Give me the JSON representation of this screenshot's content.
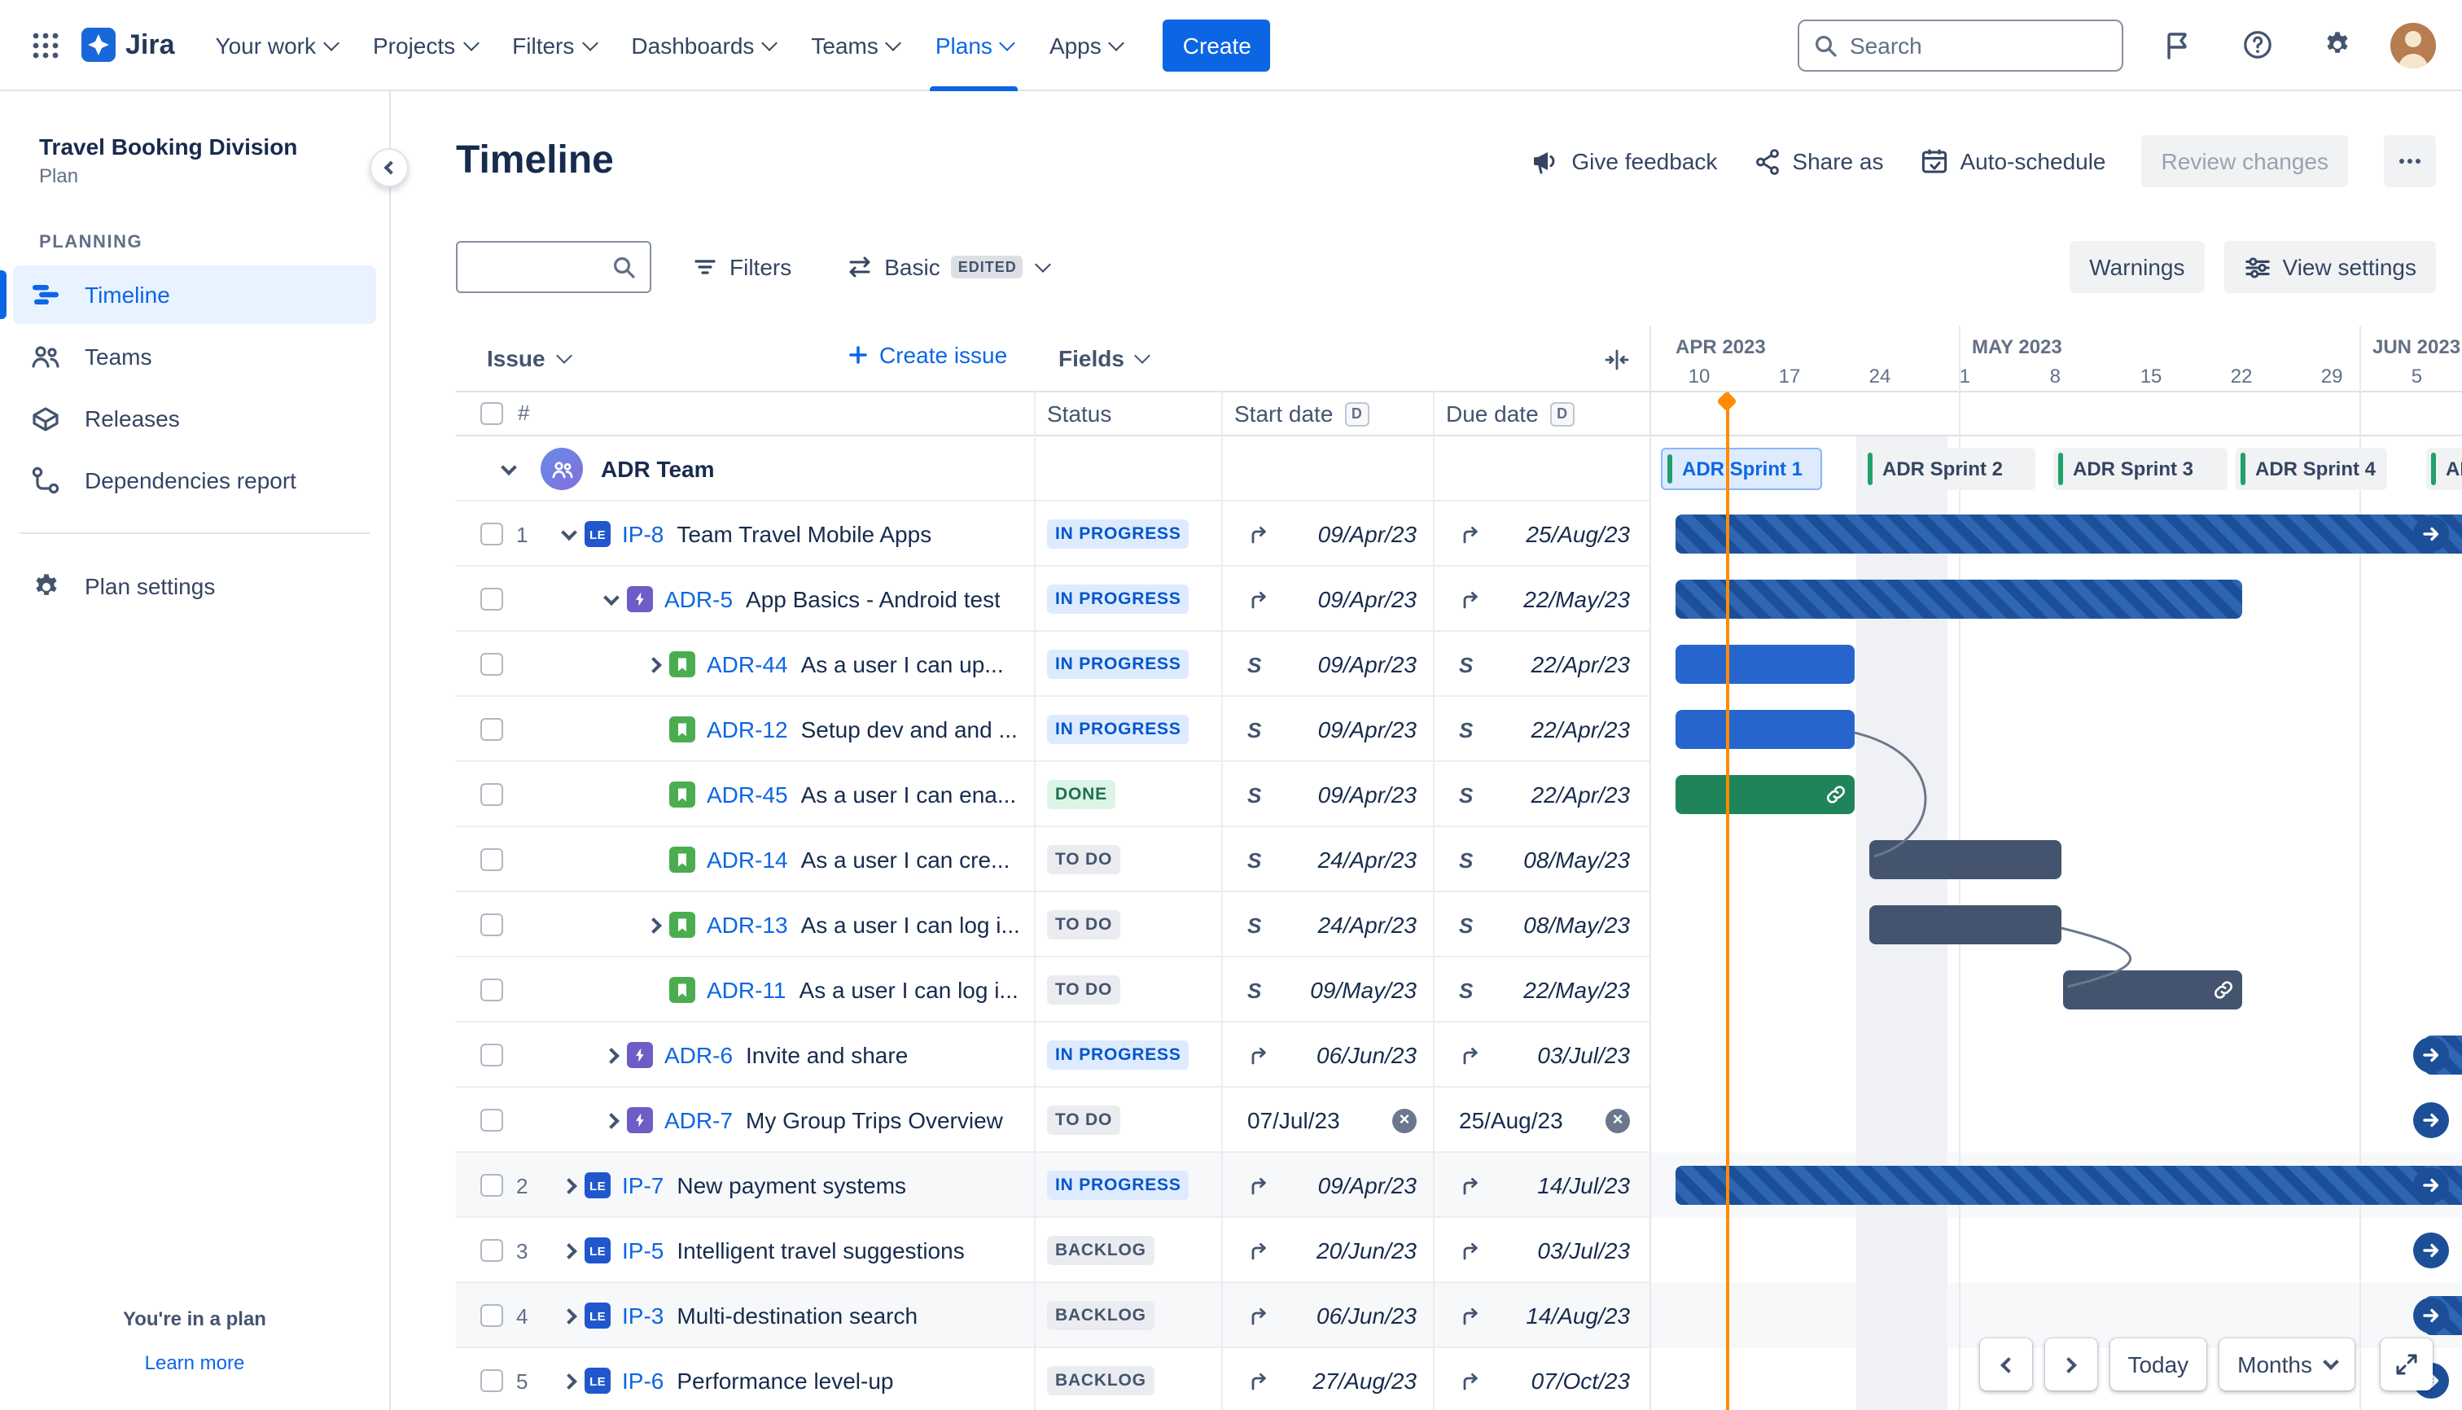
{
  "colors": {
    "accent": "#0C66E4",
    "today_line": "#FF8B00",
    "bar_striped_dark": "#1D4F99",
    "bar_striped_light": "#2E66B4",
    "bar_blue": "#2665CC",
    "bar_green": "#1F845A",
    "bar_gray": "#44546F",
    "status_inprogress_bg": "#DEEBFF",
    "status_inprogress_text": "#0055CC",
    "status_done_bg": "#DCF5E7",
    "status_done_text": "#216E4E",
    "status_todo_bg": "#EBECF0",
    "status_todo_text": "#44546F"
  },
  "nav": {
    "logo_text": "Jira",
    "items": [
      {
        "label": "Your work"
      },
      {
        "label": "Projects"
      },
      {
        "label": "Filters"
      },
      {
        "label": "Dashboards"
      },
      {
        "label": "Teams"
      },
      {
        "label": "Plans",
        "active": true
      },
      {
        "label": "Apps"
      }
    ],
    "create_label": "Create",
    "search_placeholder": "Search"
  },
  "sidebar": {
    "plan_name": "Travel Booking Division",
    "plan_type": "Plan",
    "section_label": "PLANNING",
    "items": [
      {
        "label": "Timeline",
        "icon": "timeline",
        "active": true
      },
      {
        "label": "Teams",
        "icon": "teams"
      },
      {
        "label": "Releases",
        "icon": "releases"
      },
      {
        "label": "Dependencies report",
        "icon": "dependencies"
      }
    ],
    "settings_label": "Plan settings",
    "footer_text": "You're in a plan",
    "footer_link_label": "Learn more"
  },
  "header": {
    "title": "Timeline",
    "give_feedback_label": "Give feedback",
    "share_label": "Share as",
    "autoschedule_label": "Auto-schedule",
    "review_changes_label": "Review changes"
  },
  "toolbar": {
    "search_value": "",
    "filters_label": "Filters",
    "view_label": "Basic",
    "view_badge": "EDITED",
    "warnings_label": "Warnings",
    "view_settings_label": "View settings"
  },
  "table": {
    "issue_label": "Issue",
    "create_issue_label": "Create issue",
    "fields_label": "Fields",
    "hash_label": "#",
    "status_label": "Status",
    "start_label": "Start date",
    "due_label": "Due date",
    "date_badge": "D"
  },
  "timeline": {
    "months": [
      "APR 2023",
      "MAY 2023",
      "JUN 2023"
    ],
    "ticks": [
      "10",
      "17",
      "24",
      "1",
      "8",
      "15",
      "22",
      "29",
      "5"
    ],
    "today": "04-13",
    "sprints": [
      {
        "label": "ADR Sprint 1",
        "selected": true
      },
      {
        "label": "ADR Sprint 2"
      },
      {
        "label": "ADR Sprint 3"
      },
      {
        "label": "ADR Sprint 4"
      },
      {
        "label": "AD"
      }
    ],
    "controls": {
      "today_label": "Today",
      "range_label": "Months"
    }
  },
  "plan": {
    "group_name": "ADR Team",
    "rows": [
      {
        "num": "1",
        "depth": 0,
        "chevron": "down",
        "type": "le",
        "type_label": "LE",
        "key": "IP-8",
        "title": "Team Travel Mobile Apps",
        "status": "IN PROGRESS",
        "status_kind": "inprogress",
        "start": {
          "icon": "rollup",
          "text": "09/Apr/23"
        },
        "due": {
          "icon": "rollup",
          "text": "25/Aug/23"
        },
        "bar": {
          "kind": "striped",
          "from": "04-09",
          "to": "08-25",
          "arrow": true
        }
      },
      {
        "depth": 1,
        "chevron": "down",
        "type": "epic",
        "key": "ADR-5",
        "title": "App Basics - Android test",
        "status": "IN PROGRESS",
        "status_kind": "inprogress",
        "start": {
          "icon": "rollup",
          "text": "09/Apr/23"
        },
        "due": {
          "icon": "rollup",
          "text": "22/May/23"
        },
        "bar": {
          "kind": "striped",
          "from": "04-09",
          "to": "05-22"
        }
      },
      {
        "depth": 2,
        "chevron": "right",
        "type": "story",
        "key": "ADR-44",
        "title": "As a user I can up...",
        "status": "IN PROGRESS",
        "status_kind": "inprogress",
        "start": {
          "icon": "sprint",
          "text": "09/Apr/23"
        },
        "due": {
          "icon": "sprint",
          "text": "22/Apr/23"
        },
        "bar": {
          "kind": "blue",
          "from": "04-09",
          "to": "04-22"
        }
      },
      {
        "depth": 2,
        "type": "story",
        "key": "ADR-12",
        "title": "Setup dev and and ...",
        "status": "IN PROGRESS",
        "status_kind": "inprogress",
        "start": {
          "icon": "sprint",
          "text": "09/Apr/23"
        },
        "due": {
          "icon": "sprint",
          "text": "22/Apr/23"
        },
        "bar": {
          "kind": "blue",
          "from": "04-09",
          "to": "04-22"
        }
      },
      {
        "depth": 2,
        "type": "story",
        "key": "ADR-45",
        "title": "As a user I can ena...",
        "status": "DONE",
        "status_kind": "done",
        "start": {
          "icon": "sprint",
          "text": "09/Apr/23"
        },
        "due": {
          "icon": "sprint",
          "text": "22/Apr/23"
        },
        "bar": {
          "kind": "green",
          "from": "04-09",
          "to": "04-22",
          "link": true
        }
      },
      {
        "depth": 2,
        "type": "story",
        "key": "ADR-14",
        "title": "As a user I can cre...",
        "status": "TO DO",
        "status_kind": "todo",
        "start": {
          "icon": "sprint",
          "text": "24/Apr/23"
        },
        "due": {
          "icon": "sprint",
          "text": "08/May/23"
        },
        "bar": {
          "kind": "gray",
          "from": "04-24",
          "to": "05-08"
        }
      },
      {
        "depth": 2,
        "chevron": "right",
        "type": "story",
        "key": "ADR-13",
        "title": "As a user I can log i...",
        "status": "TO DO",
        "status_kind": "todo",
        "start": {
          "icon": "sprint",
          "text": "24/Apr/23"
        },
        "due": {
          "icon": "sprint",
          "text": "08/May/23"
        },
        "bar": {
          "kind": "gray",
          "from": "04-24",
          "to": "05-08"
        }
      },
      {
        "depth": 2,
        "type": "story",
        "key": "ADR-11",
        "title": "As a user I can log i...",
        "status": "TO DO",
        "status_kind": "todo",
        "start": {
          "icon": "sprint",
          "text": "09/May/23"
        },
        "due": {
          "icon": "sprint",
          "text": "22/May/23"
        },
        "bar": {
          "kind": "gray",
          "from": "05-09",
          "to": "05-22",
          "link": true
        }
      },
      {
        "depth": 1,
        "chevron": "right",
        "type": "epic",
        "key": "ADR-6",
        "title": "Invite and share",
        "status": "IN PROGRESS",
        "status_kind": "inprogress",
        "start": {
          "icon": "rollup",
          "text": "06/Jun/23"
        },
        "due": {
          "icon": "rollup",
          "text": "03/Jul/23"
        },
        "bar": {
          "kind": "striped",
          "from": "06-06",
          "to": "07-03",
          "arrow": true
        }
      },
      {
        "depth": 1,
        "chevron": "right",
        "type": "epic",
        "key": "ADR-7",
        "title": "My Group Trips Overview",
        "status": "TO DO",
        "status_kind": "todo",
        "start": {
          "text": "07/Jul/23",
          "clear": true
        },
        "due": {
          "text": "25/Aug/23",
          "clear": true
        },
        "bar": {
          "kind": "striped",
          "from": "07-07",
          "to": "08-25",
          "arrow": true
        }
      },
      {
        "num": "2",
        "depth": 0,
        "chevron": "right",
        "type": "le",
        "type_label": "LE",
        "key": "IP-7",
        "title": "New payment systems",
        "status": "IN PROGRESS",
        "status_kind": "inprogress",
        "zebra": true,
        "start": {
          "icon": "rollup",
          "text": "09/Apr/23"
        },
        "due": {
          "icon": "rollup",
          "text": "14/Jul/23"
        },
        "bar": {
          "kind": "striped",
          "from": "04-09",
          "to": "07-14",
          "arrow": true
        }
      },
      {
        "num": "3",
        "depth": 0,
        "chevron": "right",
        "type": "le",
        "type_label": "LE",
        "key": "IP-5",
        "title": "Intelligent travel suggestions",
        "status": "BACKLOG",
        "status_kind": "todo",
        "start": {
          "icon": "rollup",
          "text": "20/Jun/23"
        },
        "due": {
          "icon": "rollup",
          "text": "03/Jul/23"
        },
        "bar": {
          "kind": "striped",
          "from": "06-20",
          "to": "07-03",
          "arrow": true
        }
      },
      {
        "num": "4",
        "depth": 0,
        "chevron": "right",
        "type": "le",
        "type_label": "LE",
        "key": "IP-3",
        "title": "Multi-destination search",
        "status": "BACKLOG",
        "status_kind": "todo",
        "zebra": true,
        "start": {
          "icon": "rollup",
          "text": "06/Jun/23"
        },
        "due": {
          "icon": "rollup",
          "text": "14/Aug/23"
        },
        "bar": {
          "kind": "striped",
          "from": "06-06",
          "to": "08-14",
          "arrow": true
        }
      },
      {
        "num": "5",
        "depth": 0,
        "chevron": "right",
        "type": "le",
        "type_label": "LE",
        "key": "IP-6",
        "title": "Performance level-up",
        "status": "BACKLOG",
        "status_kind": "todo",
        "start": {
          "icon": "rollup",
          "text": "27/Aug/23"
        },
        "due": {
          "icon": "rollup",
          "text": "07/Oct/23"
        },
        "bar": {
          "kind": "striped",
          "from": "08-27",
          "to": "10-07",
          "arrow": true
        }
      }
    ],
    "dependencies": [
      {
        "from": "ADR-12",
        "to": "ADR-14"
      },
      {
        "from": "ADR-13",
        "to": "ADR-11"
      }
    ]
  }
}
